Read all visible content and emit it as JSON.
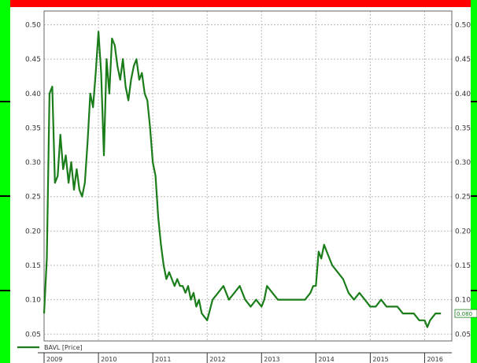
{
  "chart_data": {
    "type": "line",
    "title": "",
    "xlabel": "",
    "ylabel": "",
    "ylim": [
      0.04,
      0.52
    ],
    "xlim": [
      2009.0,
      2016.5
    ],
    "y_ticks": [
      "0.05",
      "0.10",
      "0.15",
      "0.20",
      "0.25",
      "0.30",
      "0.35",
      "0.40",
      "0.45",
      "0.50"
    ],
    "x_labels": [
      "2009",
      "2010",
      "2011",
      "2012",
      "2013",
      "2014",
      "2015",
      "2016"
    ],
    "grid": true,
    "legend_position": "bottom-left",
    "last_value_label": "0.080",
    "series": [
      {
        "name": "BAVL [Price]",
        "color": "#1a7d1a",
        "x": [
          2009.0,
          2009.05,
          2009.1,
          2009.15,
          2009.2,
          2009.25,
          2009.3,
          2009.35,
          2009.4,
          2009.45,
          2009.5,
          2009.55,
          2009.6,
          2009.65,
          2009.7,
          2009.75,
          2009.8,
          2009.85,
          2009.9,
          2009.95,
          2010.0,
          2010.05,
          2010.1,
          2010.15,
          2010.2,
          2010.25,
          2010.3,
          2010.35,
          2010.4,
          2010.45,
          2010.5,
          2010.55,
          2010.6,
          2010.65,
          2010.7,
          2010.75,
          2010.8,
          2010.85,
          2010.9,
          2010.95,
          2011.0,
          2011.05,
          2011.1,
          2011.15,
          2011.2,
          2011.25,
          2011.3,
          2011.35,
          2011.4,
          2011.45,
          2011.5,
          2011.55,
          2011.6,
          2011.65,
          2011.7,
          2011.75,
          2011.8,
          2011.85,
          2011.9,
          2012.0,
          2012.1,
          2012.2,
          2012.3,
          2012.4,
          2012.5,
          2012.6,
          2012.7,
          2012.8,
          2012.9,
          2013.0,
          2013.05,
          2013.1,
          2013.2,
          2013.3,
          2013.4,
          2013.5,
          2013.6,
          2013.7,
          2013.8,
          2013.9,
          2013.95,
          2014.0,
          2014.05,
          2014.1,
          2014.15,
          2014.2,
          2014.3,
          2014.4,
          2014.5,
          2014.6,
          2014.7,
          2014.8,
          2014.9,
          2015.0,
          2015.1,
          2015.2,
          2015.3,
          2015.4,
          2015.5,
          2015.6,
          2015.7,
          2015.8,
          2015.9,
          2016.0,
          2016.05,
          2016.1,
          2016.2,
          2016.3
        ],
        "values": [
          0.08,
          0.16,
          0.4,
          0.41,
          0.27,
          0.28,
          0.34,
          0.29,
          0.31,
          0.27,
          0.3,
          0.26,
          0.29,
          0.26,
          0.25,
          0.27,
          0.33,
          0.4,
          0.38,
          0.43,
          0.49,
          0.43,
          0.31,
          0.45,
          0.4,
          0.48,
          0.47,
          0.44,
          0.42,
          0.45,
          0.41,
          0.39,
          0.42,
          0.44,
          0.45,
          0.42,
          0.43,
          0.4,
          0.39,
          0.35,
          0.3,
          0.28,
          0.22,
          0.18,
          0.15,
          0.13,
          0.14,
          0.13,
          0.12,
          0.13,
          0.12,
          0.12,
          0.11,
          0.12,
          0.1,
          0.11,
          0.09,
          0.1,
          0.08,
          0.07,
          0.1,
          0.11,
          0.12,
          0.1,
          0.11,
          0.12,
          0.1,
          0.09,
          0.1,
          0.09,
          0.1,
          0.12,
          0.11,
          0.1,
          0.1,
          0.1,
          0.1,
          0.1,
          0.1,
          0.11,
          0.12,
          0.12,
          0.17,
          0.16,
          0.18,
          0.17,
          0.15,
          0.14,
          0.13,
          0.11,
          0.1,
          0.11,
          0.1,
          0.09,
          0.09,
          0.1,
          0.09,
          0.09,
          0.09,
          0.08,
          0.08,
          0.08,
          0.07,
          0.07,
          0.06,
          0.07,
          0.08,
          0.08
        ]
      }
    ]
  }
}
